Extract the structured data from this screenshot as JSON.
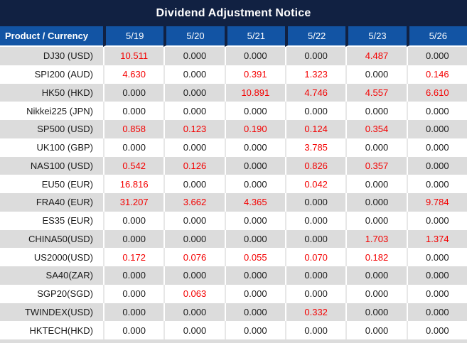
{
  "title": "Dividend Adjustment Notice",
  "colors": {
    "title_bg": "#112142",
    "header_bg": "#1254a4",
    "row_alt_bg": "#dcdcdc",
    "nonzero_color": "#f40000"
  },
  "table": {
    "product_header": "Product / Currency",
    "date_columns": [
      "5/19",
      "5/20",
      "5/21",
      "5/22",
      "5/23",
      "5/26"
    ],
    "zero_value": "0.000",
    "rows": [
      {
        "product": "DJ30 (USD)",
        "values": [
          "10.511",
          "0.000",
          "0.000",
          "0.000",
          "4.487",
          "0.000"
        ]
      },
      {
        "product": "SPI200 (AUD)",
        "values": [
          "4.630",
          "0.000",
          "0.391",
          "1.323",
          "0.000",
          "0.146"
        ]
      },
      {
        "product": "HK50 (HKD)",
        "values": [
          "0.000",
          "0.000",
          "10.891",
          "4.746",
          "4.557",
          "6.610"
        ]
      },
      {
        "product": "Nikkei225 (JPN)",
        "values": [
          "0.000",
          "0.000",
          "0.000",
          "0.000",
          "0.000",
          "0.000"
        ]
      },
      {
        "product": "SP500 (USD)",
        "values": [
          "0.858",
          "0.123",
          "0.190",
          "0.124",
          "0.354",
          "0.000"
        ]
      },
      {
        "product": "UK100 (GBP)",
        "values": [
          "0.000",
          "0.000",
          "0.000",
          "3.785",
          "0.000",
          "0.000"
        ]
      },
      {
        "product": "NAS100 (USD)",
        "values": [
          "0.542",
          "0.126",
          "0.000",
          "0.826",
          "0.357",
          "0.000"
        ]
      },
      {
        "product": "EU50 (EUR)",
        "values": [
          "16.816",
          "0.000",
          "0.000",
          "0.042",
          "0.000",
          "0.000"
        ]
      },
      {
        "product": "FRA40 (EUR)",
        "values": [
          "31.207",
          "3.662",
          "4.365",
          "0.000",
          "0.000",
          "9.784"
        ]
      },
      {
        "product": "ES35 (EUR)",
        "values": [
          "0.000",
          "0.000",
          "0.000",
          "0.000",
          "0.000",
          "0.000"
        ]
      },
      {
        "product": "CHINA50(USD)",
        "values": [
          "0.000",
          "0.000",
          "0.000",
          "0.000",
          "1.703",
          "1.374"
        ]
      },
      {
        "product": "US2000(USD)",
        "values": [
          "0.172",
          "0.076",
          "0.055",
          "0.070",
          "0.182",
          "0.000"
        ]
      },
      {
        "product": "SA40(ZAR)",
        "values": [
          "0.000",
          "0.000",
          "0.000",
          "0.000",
          "0.000",
          "0.000"
        ]
      },
      {
        "product": "SGP20(SGD)",
        "values": [
          "0.000",
          "0.063",
          "0.000",
          "0.000",
          "0.000",
          "0.000"
        ]
      },
      {
        "product": "TWINDEX(USD)",
        "values": [
          "0.000",
          "0.000",
          "0.000",
          "0.332",
          "0.000",
          "0.000"
        ]
      },
      {
        "product": "HKTECH(HKD)",
        "values": [
          "0.000",
          "0.000",
          "0.000",
          "0.000",
          "0.000",
          "0.000"
        ]
      }
    ]
  }
}
